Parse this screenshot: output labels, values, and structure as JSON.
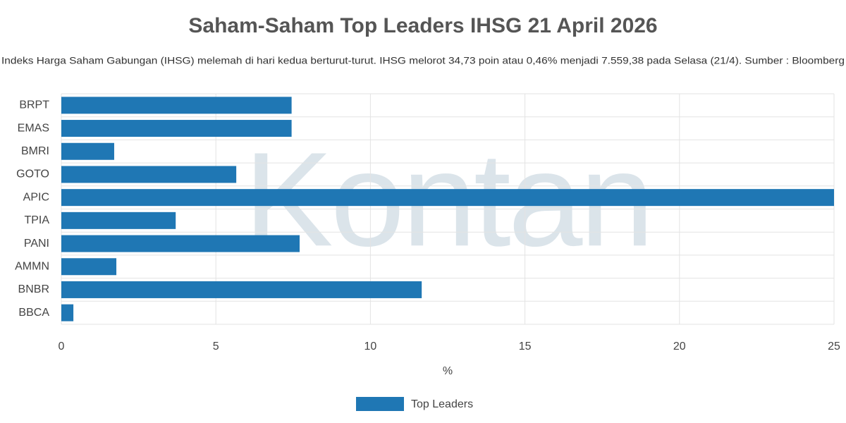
{
  "watermark": "Kontan",
  "chart_data": {
    "type": "hbar",
    "title": "Saham-Saham Top Leaders IHSG 21 April 2026",
    "subtitle": "Indeks Harga Saham Gabungan (IHSG) melemah di hari kedua berturut-turut. IHSG melorot 34,73 poin atau 0,46% menjadi 7.559,38 pada Selasa (21/4). Sumber : Bloomberg",
    "x_label": "%",
    "categories": [
      "BRPT",
      "EMAS",
      "BMRI",
      "GOTO",
      "APIC",
      "TPIA",
      "PANI",
      "AMMN",
      "BNBR",
      "BBCA"
    ],
    "series": [
      {
        "name": "Top Leaders",
        "color": "#1f77b4",
        "values": [
          7.45,
          7.45,
          1.71,
          5.66,
          25,
          3.7,
          7.71,
          1.78,
          11.66,
          0.39
        ]
      }
    ],
    "xlim": [
      0,
      25
    ],
    "xticks": [
      0,
      5,
      10,
      15,
      20,
      25
    ],
    "grid": true,
    "legend": "bottom"
  }
}
